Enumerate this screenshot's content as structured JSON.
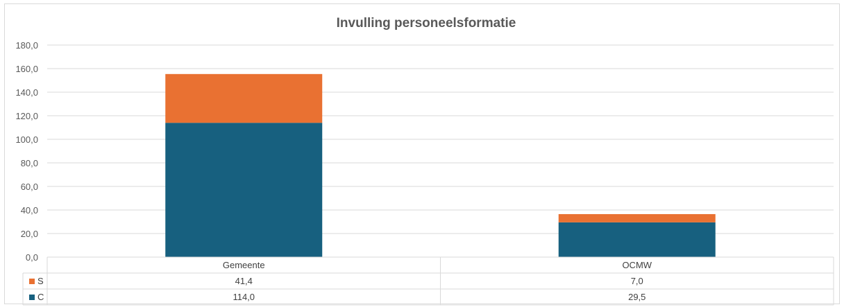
{
  "chart_data": {
    "type": "bar",
    "stacked": true,
    "title": "Invulling personeelsformatie",
    "categories": [
      "Gemeente",
      "OCMW"
    ],
    "series": [
      {
        "name": "C",
        "values": [
          114.0,
          29.5
        ],
        "labels": [
          "114,0",
          "29,5"
        ],
        "color": "#17607f"
      },
      {
        "name": "S",
        "values": [
          41.4,
          7.0
        ],
        "labels": [
          "41,4",
          "7,0"
        ],
        "color": "#e97132"
      }
    ],
    "ylim": [
      0,
      180
    ],
    "yticks": [
      0,
      20,
      40,
      60,
      80,
      100,
      120,
      140,
      160,
      180
    ],
    "ytick_labels": [
      "0,0",
      "20,0",
      "40,0",
      "60,0",
      "80,0",
      "100,0",
      "120,0",
      "140,0",
      "160,0",
      "180,0"
    ],
    "grid": true,
    "legend": "data-table",
    "data_table_row_order": [
      "S",
      "C"
    ]
  }
}
